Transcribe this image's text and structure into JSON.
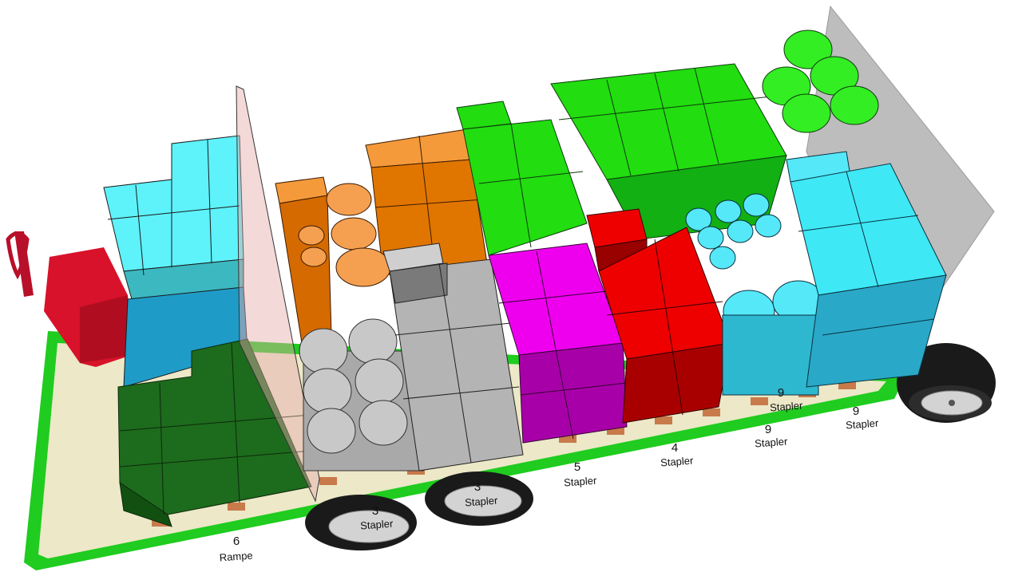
{
  "colors": {
    "floor": "#ece8c8",
    "floor_edge": "#1fcc1f",
    "wall": "#b9b9b9",
    "pallet": "#c87a4a",
    "cab_red": "#d8122a",
    "cyan": "#3fe8f5",
    "cyan_dark": "#1f9bc8",
    "green": "#22dd10",
    "dark_green": "#1d6b1d",
    "orange": "#f07d00",
    "silver": "#bdbdbd",
    "magenta": "#ee00ee",
    "red": "#ee0000",
    "tire": "#1a1a1a",
    "rim": "#d0d0d0"
  },
  "labels": [
    {
      "number": "6",
      "text": "Rampe"
    },
    {
      "number": "3",
      "text": "Stapler"
    },
    {
      "number": "3",
      "text": "Stapler"
    },
    {
      "number": "5",
      "text": "Stapler"
    },
    {
      "number": "4",
      "text": "Stapler"
    },
    {
      "number": "9",
      "text": "Stapler"
    },
    {
      "number": "9",
      "text": "Stapler"
    },
    {
      "number": "9",
      "text": "Stapler"
    }
  ]
}
